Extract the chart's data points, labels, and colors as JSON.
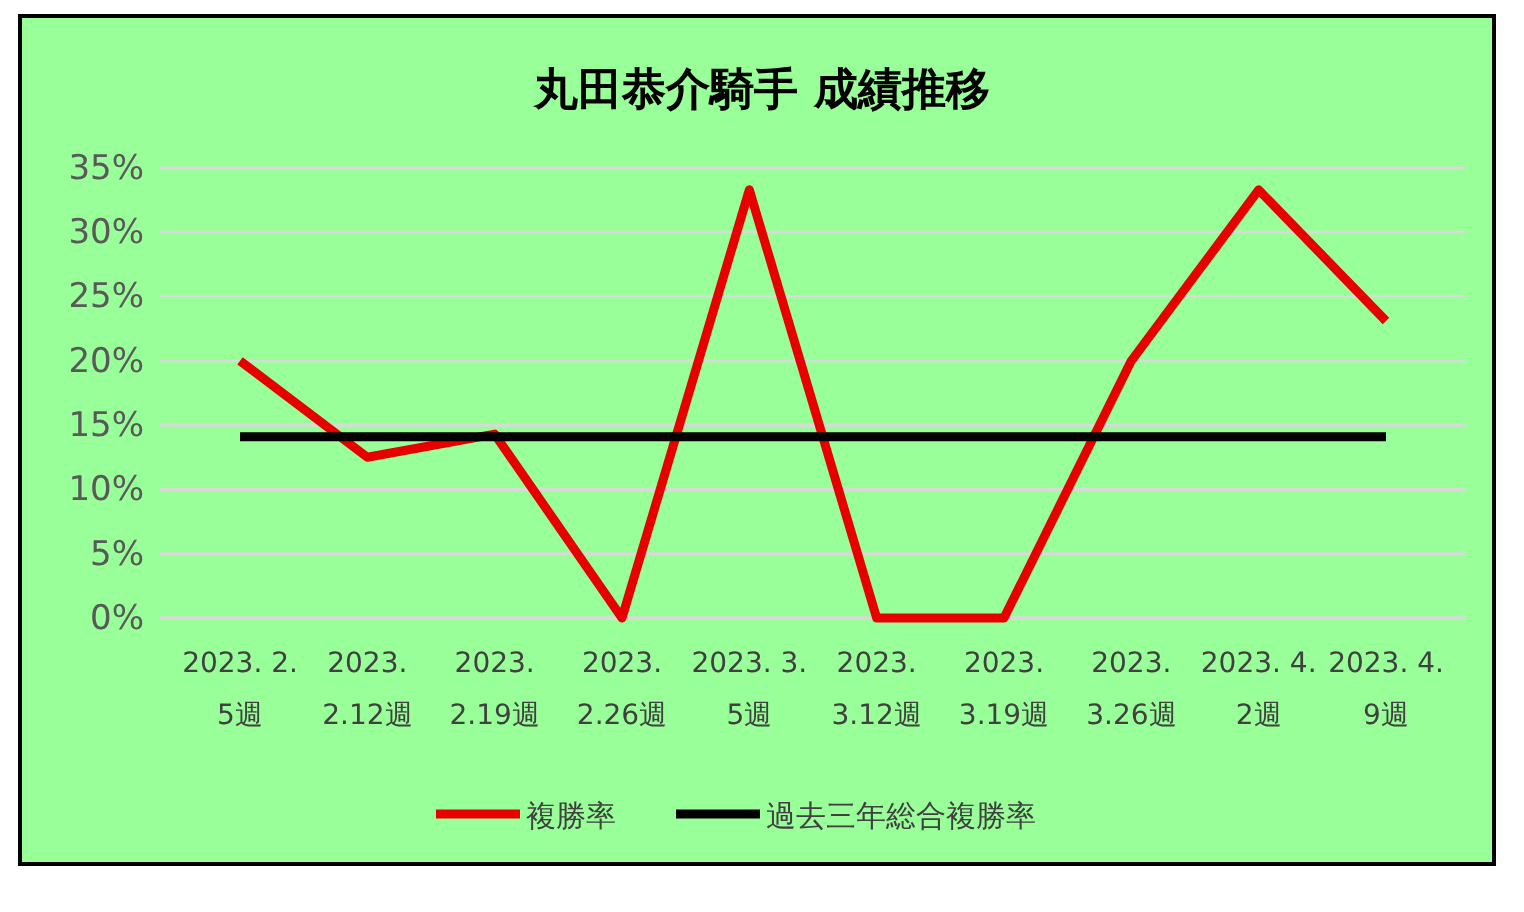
{
  "chart_data": {
    "type": "line",
    "title": "丸田恭介騎手 成績推移",
    "categories": [
      "2023. 2.\n5週",
      "2023.\n2.12週",
      "2023.\n2.19週",
      "2023.\n2.26週",
      "2023. 3.\n5週",
      "2023.\n3.12週",
      "2023.\n3.19週",
      "2023.\n3.26週",
      "2023. 4.\n2週",
      "2023. 4.\n9週"
    ],
    "series": [
      {
        "name": "複勝率",
        "color": "#e60000",
        "values": [
          20,
          12.5,
          14.3,
          0,
          33.3,
          0,
          0,
          20,
          33.3,
          23.1
        ]
      },
      {
        "name": "過去三年総合複勝率",
        "color": "#000000",
        "values": [
          14.1,
          14.1,
          14.1,
          14.1,
          14.1,
          14.1,
          14.1,
          14.1,
          14.1,
          14.1
        ]
      }
    ],
    "ylim": [
      0,
      35
    ],
    "yticks": [
      {
        "value": 0,
        "label": "0%"
      },
      {
        "value": 5,
        "label": "5%"
      },
      {
        "value": 10,
        "label": "10%"
      },
      {
        "value": 15,
        "label": "15%"
      },
      {
        "value": 20,
        "label": "20%"
      },
      {
        "value": 25,
        "label": "25%"
      },
      {
        "value": 30,
        "label": "30%"
      },
      {
        "value": 35,
        "label": "35%"
      }
    ],
    "grid": "y",
    "legend": "bottom",
    "marker": "none",
    "line_style": "solid"
  }
}
